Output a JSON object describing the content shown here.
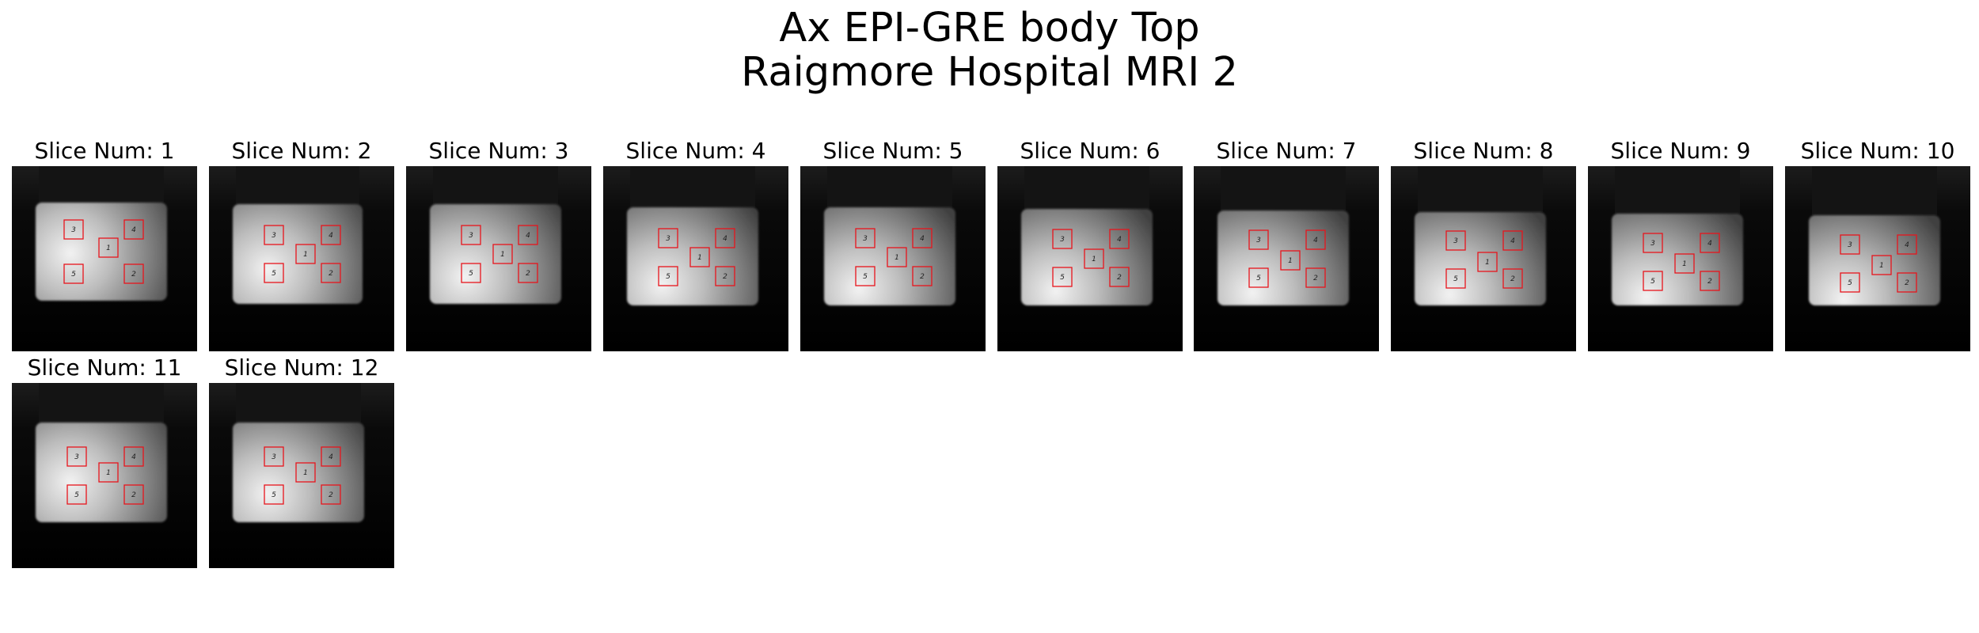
{
  "figure": {
    "title_line_1": "Ax EPI-GRE body Top",
    "title_line_2": "Raigmore Hospital MRI 2"
  },
  "roi": {
    "color": "#e8141c",
    "labels": [
      "1",
      "2",
      "3",
      "4",
      "5"
    ]
  },
  "slices": [
    {
      "label": "Slice Num: 1"
    },
    {
      "label": "Slice Num: 2"
    },
    {
      "label": "Slice Num: 3"
    },
    {
      "label": "Slice Num: 4"
    },
    {
      "label": "Slice Num: 5"
    },
    {
      "label": "Slice Num: 6"
    },
    {
      "label": "Slice Num: 7"
    },
    {
      "label": "Slice Num: 8"
    },
    {
      "label": "Slice Num: 9"
    },
    {
      "label": "Slice Num: 10"
    },
    {
      "label": "Slice Num: 11"
    },
    {
      "label": "Slice Num: 12"
    }
  ]
}
